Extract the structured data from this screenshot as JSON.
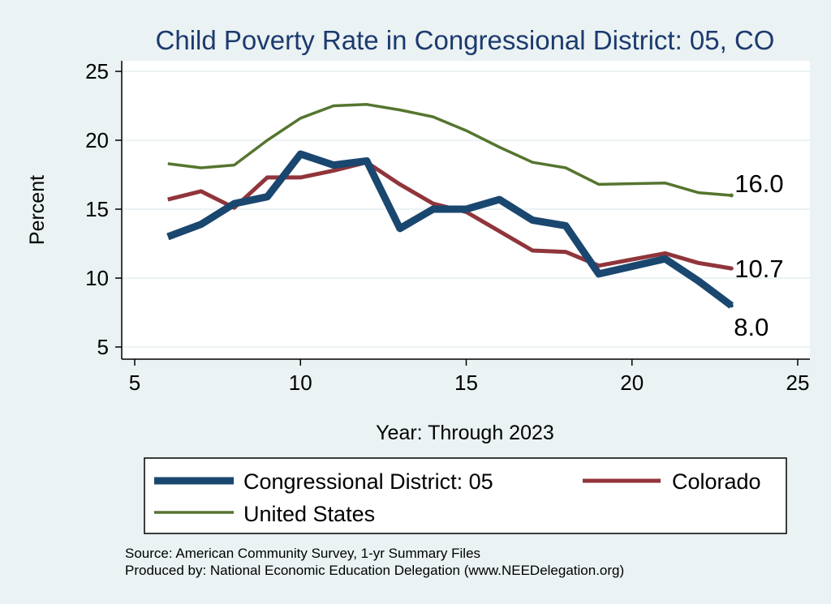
{
  "chart_data": {
    "type": "line",
    "title": "Child Poverty Rate in Congressional District:  05, CO",
    "xlabel": "Year: Through 2023",
    "ylabel": "Percent",
    "xlim": [
      5,
      25
    ],
    "ylim": [
      5,
      25
    ],
    "xticks": [
      5,
      10,
      15,
      20,
      25
    ],
    "yticks": [
      5,
      10,
      15,
      20,
      25
    ],
    "grid": true,
    "legend_position": "bottom",
    "series": [
      {
        "name": "Congressional District:  05",
        "color": "#1a476f",
        "x": [
          6,
          7,
          8,
          9,
          10,
          11,
          12,
          13,
          14,
          15,
          16,
          17,
          18,
          19,
          21,
          22,
          23
        ],
        "values": [
          13.0,
          13.9,
          15.4,
          15.9,
          19.0,
          18.2,
          18.5,
          13.6,
          15.0,
          15.0,
          15.7,
          14.2,
          13.8,
          10.3,
          11.4,
          9.8,
          8.0
        ],
        "end_label": "8.0"
      },
      {
        "name": "Colorado",
        "color": "#90353b",
        "x": [
          6,
          7,
          8,
          9,
          10,
          11,
          12,
          13,
          14,
          15,
          16,
          17,
          18,
          19,
          21,
          22,
          23
        ],
        "values": [
          15.7,
          16.3,
          15.1,
          17.3,
          17.3,
          17.8,
          18.4,
          16.8,
          15.4,
          14.8,
          13.4,
          12.0,
          11.9,
          10.9,
          11.8,
          11.1,
          10.7
        ],
        "end_label": "10.7"
      },
      {
        "name": "United States",
        "color": "#55752f",
        "x": [
          6,
          7,
          8,
          9,
          10,
          11,
          12,
          13,
          14,
          15,
          16,
          17,
          18,
          19,
          21,
          22,
          23
        ],
        "values": [
          18.3,
          18.0,
          18.2,
          20.0,
          21.6,
          22.5,
          22.6,
          22.2,
          21.7,
          20.7,
          19.5,
          18.4,
          18.0,
          16.8,
          16.9,
          16.2,
          16.0
        ],
        "end_label": "16.0"
      }
    ]
  },
  "legend": {
    "items": [
      {
        "label": "Congressional District:  05",
        "color": "#1a476f"
      },
      {
        "label": "Colorado",
        "color": "#90353b"
      },
      {
        "label": "United States",
        "color": "#55752f"
      }
    ]
  },
  "notes": {
    "source": "Source: American Community Survey, 1-yr Summary Files",
    "produced": "Produced by: National Economic Education Delegation (www.NEEDelegation.org)"
  }
}
